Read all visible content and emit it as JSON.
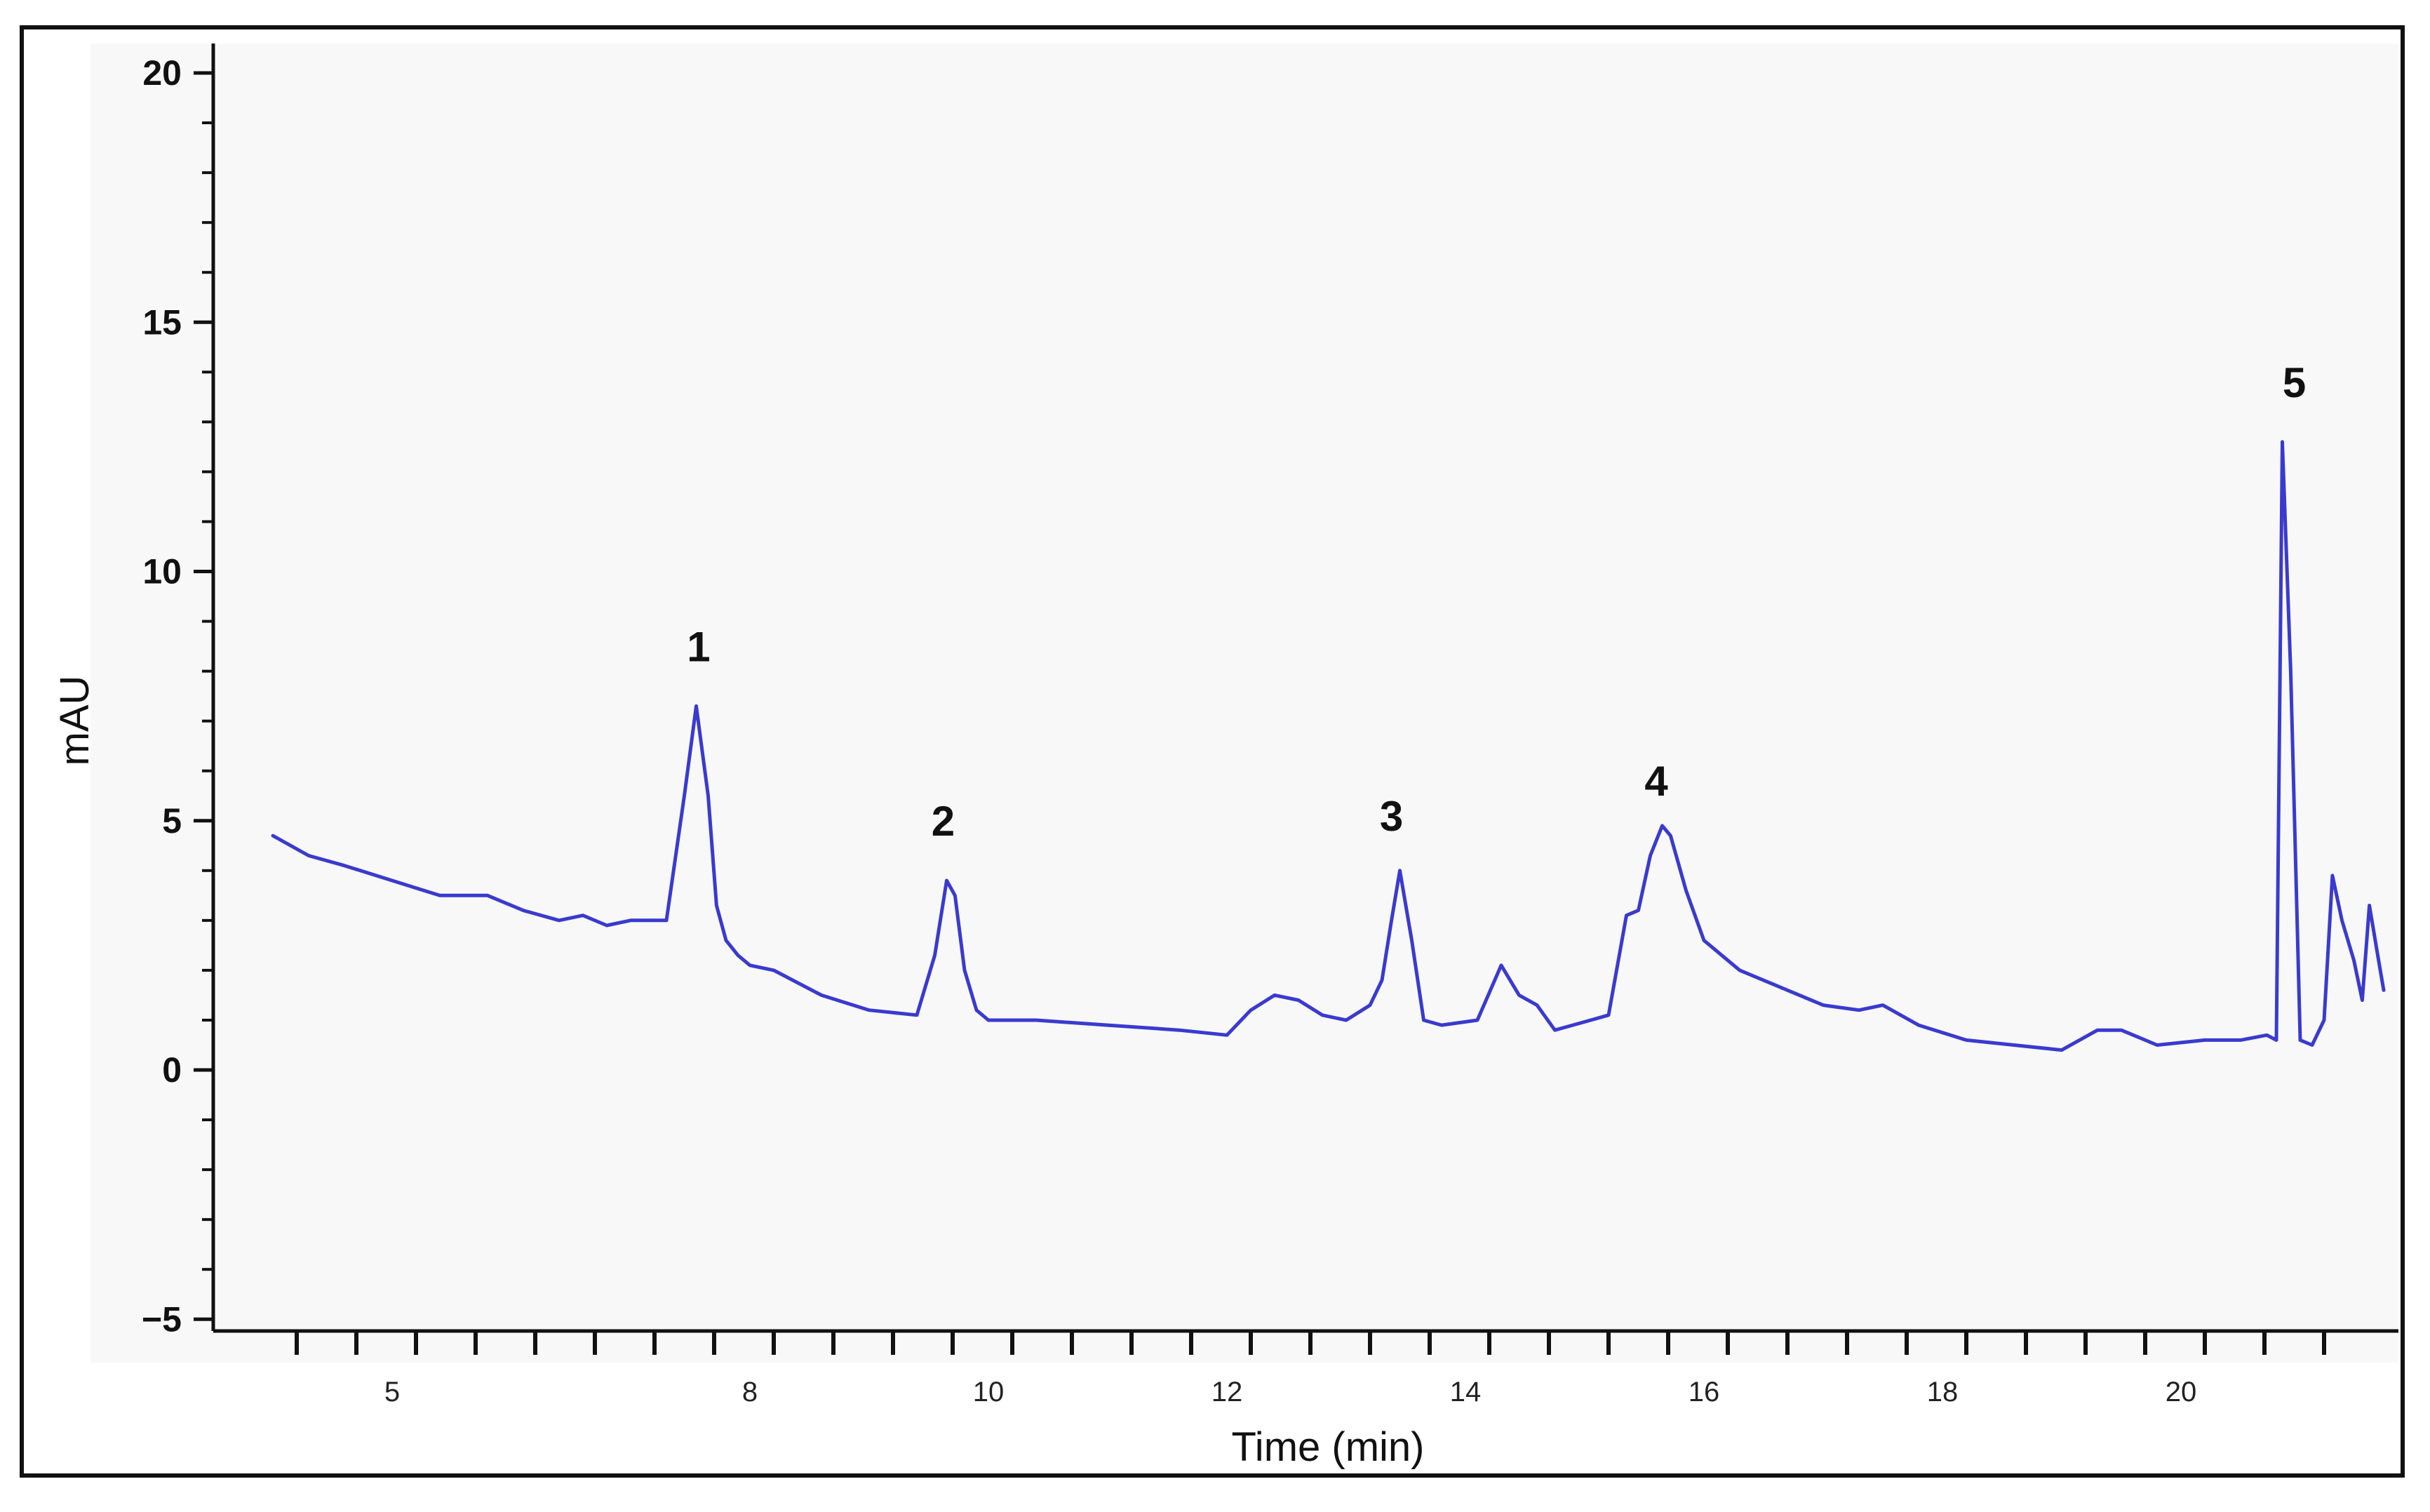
{
  "chart_data": {
    "type": "line",
    "title": "",
    "xlabel": "Time (min)",
    "ylabel": "mAU",
    "xlim": [
      4.0,
      21.7
    ],
    "ylim": [
      -5,
      21
    ],
    "x_ticks": [
      5,
      8,
      10,
      12,
      14,
      16,
      18,
      20
    ],
    "x_tick_labels": [
      "5",
      "8",
      "10",
      "12",
      "14",
      "16",
      "18",
      "20"
    ],
    "x_minor_ticks": [
      4.2,
      4.7,
      5.2,
      5.7,
      6.2,
      6.7,
      7.2,
      7.7,
      8.2,
      8.7,
      9.2,
      9.7,
      10.2,
      10.7,
      11.2,
      11.7,
      12.2,
      12.7,
      13.2,
      13.7,
      14.2,
      14.7,
      15.2,
      15.7,
      16.2,
      16.7,
      17.2,
      17.7,
      18.2,
      18.7,
      19.2,
      19.7,
      20.2,
      20.7,
      21.2
    ],
    "y_ticks": [
      -5,
      0,
      5,
      10,
      15,
      20
    ],
    "y_tick_labels": [
      "−5",
      "0",
      "5",
      "10",
      "15",
      "20"
    ],
    "grid": false,
    "line_color": "#3a3ad0",
    "series": [
      {
        "x": [
          4.0,
          4.3,
          4.6,
          5.0,
          5.4,
          5.8,
          6.1,
          6.4,
          6.6,
          6.8,
          7.0,
          7.3,
          7.45,
          7.55,
          7.65,
          7.72,
          7.8,
          7.9,
          8.0,
          8.2,
          8.6,
          9.0,
          9.4,
          9.55,
          9.65,
          9.72,
          9.8,
          9.9,
          10.0,
          10.4,
          11.0,
          11.6,
          12.0,
          12.2,
          12.4,
          12.6,
          12.8,
          13.0,
          13.2,
          13.3,
          13.38,
          13.45,
          13.55,
          13.65,
          13.8,
          14.1,
          14.3,
          14.45,
          14.6,
          14.75,
          14.9,
          15.05,
          15.2,
          15.35,
          15.45,
          15.55,
          15.65,
          15.72,
          15.85,
          16.0,
          16.3,
          16.7,
          17.0,
          17.3,
          17.5,
          17.8,
          18.2,
          18.6,
          19.0,
          19.3,
          19.5,
          19.8,
          20.2,
          20.5,
          20.72,
          20.8,
          20.85,
          20.92,
          21.0,
          21.1,
          21.2,
          21.27,
          21.35,
          21.45,
          21.52,
          21.58,
          21.65,
          21.7
        ],
        "y": [
          4.7,
          4.3,
          4.1,
          3.8,
          3.5,
          3.5,
          3.2,
          3.0,
          3.1,
          2.9,
          3.0,
          3.0,
          5.5,
          7.3,
          5.5,
          3.3,
          2.6,
          2.3,
          2.1,
          2.0,
          1.5,
          1.2,
          1.1,
          2.3,
          3.8,
          3.5,
          2.0,
          1.2,
          1.0,
          1.0,
          0.9,
          0.8,
          0.7,
          1.2,
          1.5,
          1.4,
          1.1,
          1.0,
          1.3,
          1.8,
          3.0,
          4.0,
          2.6,
          1.0,
          0.9,
          1.0,
          2.1,
          1.5,
          1.3,
          0.8,
          0.9,
          1.0,
          1.1,
          3.1,
          3.2,
          4.3,
          4.9,
          4.7,
          3.6,
          2.6,
          2.0,
          1.6,
          1.3,
          1.2,
          1.3,
          0.9,
          0.6,
          0.5,
          0.4,
          0.8,
          0.8,
          0.5,
          0.6,
          0.6,
          0.7,
          0.6,
          12.6,
          8.0,
          0.6,
          0.5,
          1.0,
          3.9,
          3.0,
          2.2,
          1.4,
          3.3,
          2.3,
          1.6
        ]
      }
    ],
    "annotations": [
      {
        "text": "1",
        "x": 7.57,
        "y": 8.2
      },
      {
        "text": "2",
        "x": 9.62,
        "y": 4.7
      },
      {
        "text": "3",
        "x": 13.38,
        "y": 4.8
      },
      {
        "text": "4",
        "x": 15.6,
        "y": 5.5
      },
      {
        "text": "5",
        "x": 20.95,
        "y": 13.5
      }
    ]
  }
}
